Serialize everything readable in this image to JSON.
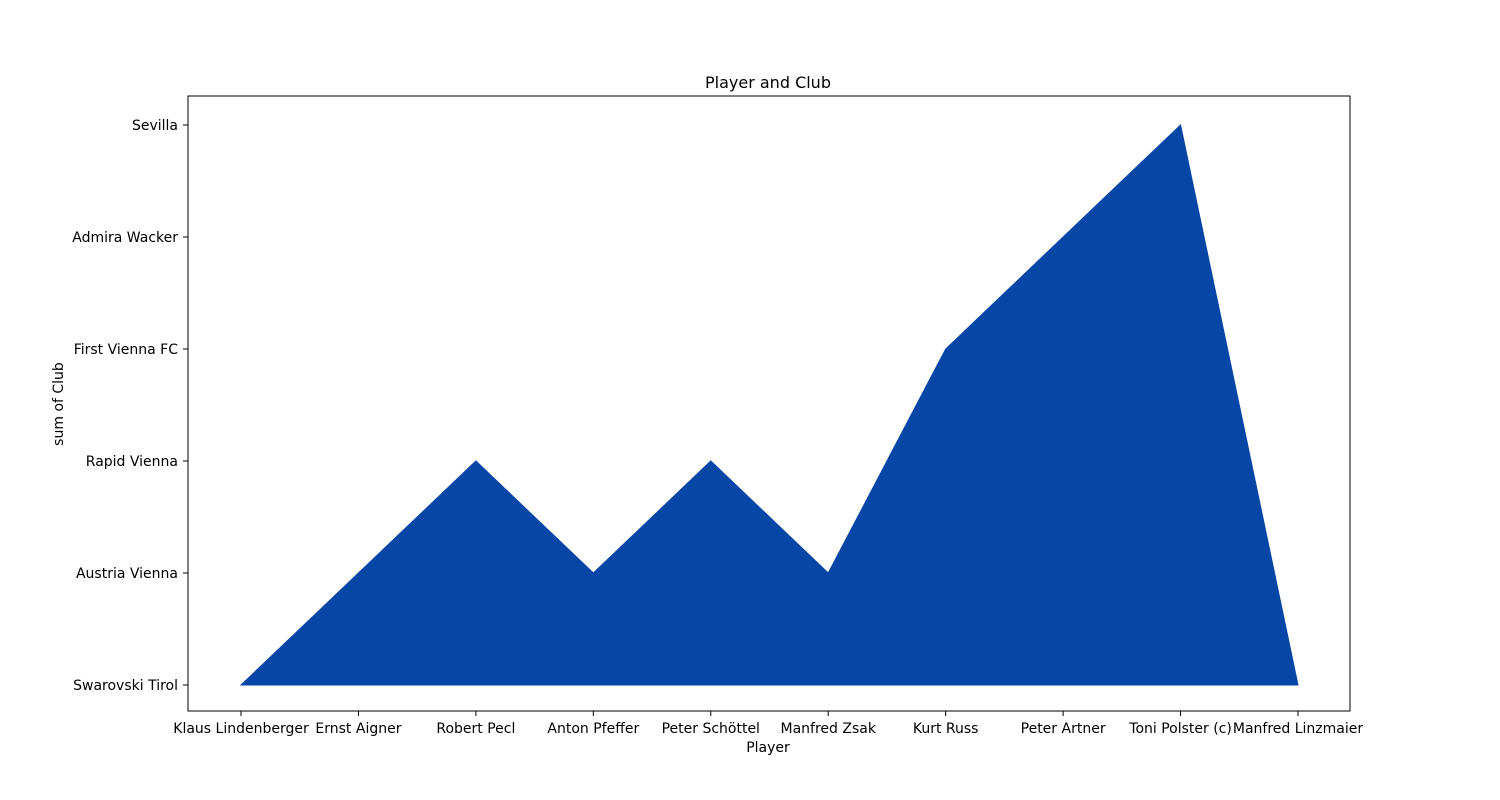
{
  "chart_data": {
    "type": "area",
    "title": "Player and Club",
    "xlabel": "Player",
    "ylabel": "sum of Club",
    "categories": [
      "Klaus Lindenberger",
      "Ernst Aigner",
      "Robert Pecl",
      "Anton Pfeffer",
      "Peter Schöttel",
      "Manfred Zsak",
      "Kurt Russ",
      "Peter Artner",
      "Toni Polster (c)",
      "Manfred Linzmaier"
    ],
    "y_categories": [
      "Swarovski Tirol",
      "Austria Vienna",
      "Rapid Vienna",
      "First Vienna FC",
      "Admira Wacker",
      "Sevilla"
    ],
    "values": [
      "Swarovski Tirol",
      "Austria Vienna",
      "Rapid Vienna",
      "Austria Vienna",
      "Rapid Vienna",
      "Austria Vienna",
      "First Vienna FC",
      "Admira Wacker",
      "Sevilla",
      "Swarovski Tirol"
    ],
    "color": "#0646a6",
    "grid": false,
    "legend": "none"
  }
}
